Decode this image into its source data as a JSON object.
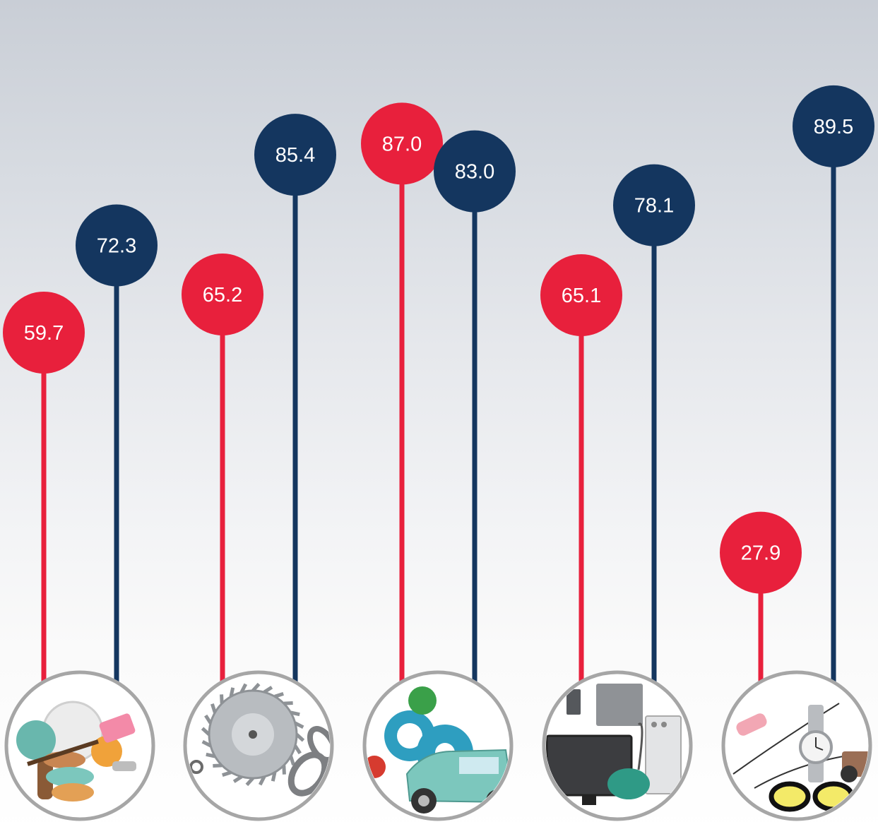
{
  "colors": {
    "series_a": "#e8203c",
    "series_b": "#14365f",
    "icon_ring": "#a6a6a6"
  },
  "chart_data": {
    "type": "bar",
    "style": "lollipop",
    "categories": [
      "household goods",
      "tools and hardware",
      "machinery and vehicles",
      "electronics and appliances",
      "personal accessories"
    ],
    "category_icons": [
      "kitchenware-icon",
      "saw-blade-icon",
      "gears-car-icon",
      "appliances-icon",
      "accessories-icon"
    ],
    "series": [
      {
        "color": "#e8203c",
        "values": [
          59.7,
          65.2,
          87.0,
          65.1,
          27.9
        ]
      },
      {
        "color": "#14365f",
        "values": [
          72.3,
          85.4,
          83.0,
          78.1,
          89.5
        ]
      }
    ],
    "labels": [
      [
        "59.7",
        "65.2",
        "87.0",
        "65.1",
        "27.9"
      ],
      [
        "72.3",
        "85.4",
        "83.0",
        "78.1",
        "89.5"
      ]
    ],
    "ylim": [
      0,
      100
    ],
    "grid": false,
    "legend": "none"
  }
}
